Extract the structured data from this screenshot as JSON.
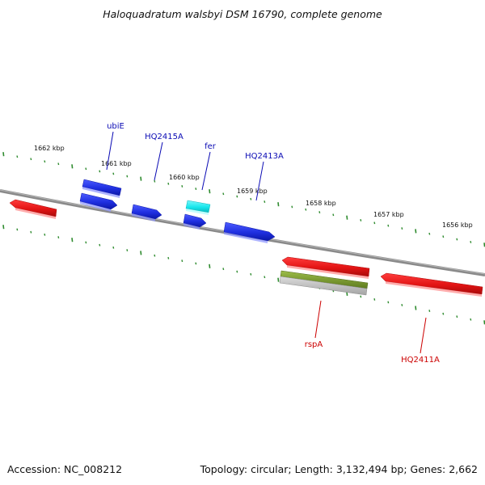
{
  "title": "Haloquadratum walsbyi DSM 16790, complete genome",
  "footer": {
    "accession": "Accession: NC_008212",
    "topology": "Topology: circular; Length: 3,132,494 bp; Genes: 2,662"
  },
  "colors": {
    "backbone": "#8a8a8a",
    "tick": "#2e8b2e",
    "forward_gene": "#1f2fe0",
    "reverse_gene": "#e31414",
    "highlight_gene": "#17e6ec",
    "rna_feature": "#7a9a2e",
    "forward_label": "#0a0ab4",
    "reverse_label": "#cc0000"
  },
  "ticks": {
    "labels": [
      "1662 kbp",
      "1661 kbp",
      "1660 kbp",
      "1659 kbp",
      "1658 kbp",
      "1657 kbp",
      "1656 kbp"
    ]
  },
  "genes": {
    "forward_labels": [
      "ubiE",
      "HQ2415A",
      "fer",
      "HQ2413A"
    ],
    "reverse_labels": [
      "rspA",
      "HQ2411A"
    ]
  }
}
